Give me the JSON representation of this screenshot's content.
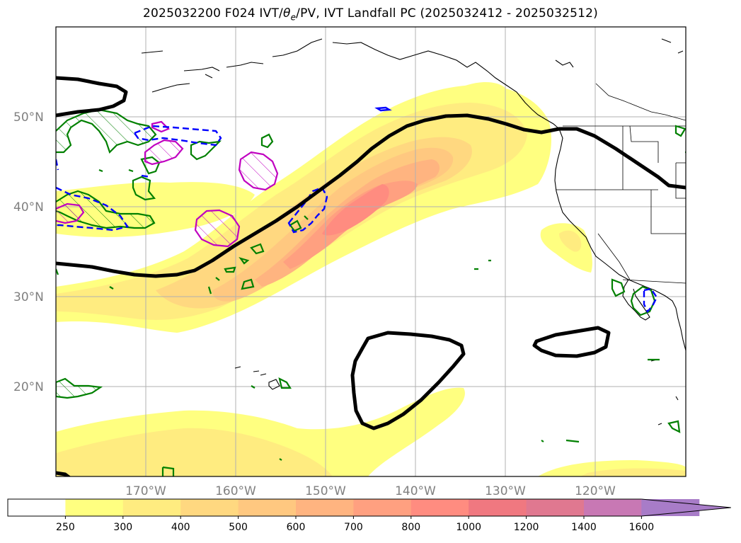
{
  "title": {
    "prefix": "2025032200 F024 IVT/",
    "theta": "θ",
    "theta_sub": "e",
    "suffix": "/PV, IVT Landfall PC (2025032412 - 2025032512)"
  },
  "lat_labels": [
    "50°N",
    "40°N",
    "30°N",
    "20°N"
  ],
  "lon_labels": [
    "170°W",
    "160°W",
    "150°W",
    "140°W",
    "130°W",
    "120°W"
  ],
  "colorbar": {
    "ticks": [
      "250",
      "300",
      "400",
      "500",
      "600",
      "700",
      "800",
      "1000",
      "1200",
      "1400",
      "1600"
    ],
    "colors": [
      "#ffffff",
      "#ffff80",
      "#ffec80",
      "#ffd880",
      "#ffc880",
      "#ffb480",
      "#ffa080",
      "#ff8c80",
      "#f07880",
      "#e07890",
      "#c878b4",
      "#a87cc8"
    ]
  },
  "colors": {
    "ivt_250": "#ffff80",
    "ivt_300": "#ffec80",
    "ivt_400": "#ffd880",
    "ivt_500": "#ffc880",
    "ivt_600": "#ffb480",
    "ivt_700": "#ffa080",
    "ivt_800": "#ff8c80",
    "pv_contour": "#000000",
    "theta_e_green": "#008000",
    "theta_e_magenta": "#c000c0",
    "dashed_blue": "#0000ff",
    "grid": "#b0b0b0"
  }
}
